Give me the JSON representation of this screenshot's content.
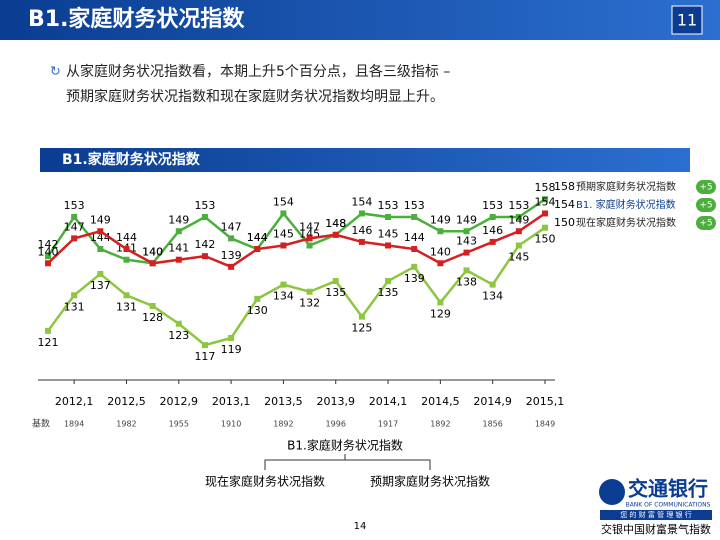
{
  "header": {
    "title": "B1.家庭财务状况指数",
    "page_badge": "11"
  },
  "bullet": {
    "line1": "从家庭财务状况指数看，本期上升5个百分点，且各三级指标 –",
    "line2": "预期家庭财务状况指数和现在家庭财务状况指数均明显上升。"
  },
  "chart_data": {
    "type": "line",
    "title": "B1.家庭财务状况指数",
    "categories": [
      null,
      "2012,1",
      null,
      "2012,5",
      null,
      "2012,9",
      null,
      "2013,1",
      null,
      "2013,5",
      null,
      "2013,9",
      null,
      "2014,1",
      null,
      "2014,5",
      null,
      "2014,9",
      null,
      "2015,1"
    ],
    "ylim": [
      110,
      162
    ],
    "legend": "right",
    "series": [
      {
        "name": "预期家庭财务状况指数",
        "color": "#4cae3c",
        "change": "+5",
        "values": [
          142,
          153,
          144,
          141,
          140,
          149,
          153,
          147,
          144,
          154,
          145,
          148,
          154,
          153,
          153,
          149,
          149,
          153,
          153,
          158
        ]
      },
      {
        "name": "B1. 家庭财务状况指数",
        "color": "#d42020",
        "change": "+5",
        "values": [
          140,
          147,
          149,
          144,
          140,
          141,
          142,
          139,
          144,
          145,
          147,
          148,
          146,
          145,
          144,
          140,
          143,
          146,
          149,
          154
        ]
      },
      {
        "name": "现在家庭财务状况指数",
        "color": "#8dc63f",
        "change": "+5",
        "values": [
          121,
          131,
          137,
          131,
          128,
          123,
          117,
          119,
          130,
          134,
          132,
          135,
          125,
          135,
          139,
          129,
          138,
          134,
          145,
          150
        ]
      }
    ],
    "base_row": {
      "label": "基数",
      "values": [
        1894,
        1982,
        1955,
        1910,
        1892,
        1996,
        1917,
        1892,
        1856,
        1849
      ]
    }
  },
  "annotation": {
    "top": "B1.家庭财务状况指数",
    "left": "现在家庭财务状况指数",
    "right": "预期家庭财务状况指数"
  },
  "footer": {
    "page": "14",
    "bank_cn": "交通银行",
    "bank_en": "BANK OF COMMUNICATIONS",
    "slogan_small": "您 的 财 富 管 理 银 行",
    "brand": "交银中国财富景气指数"
  }
}
